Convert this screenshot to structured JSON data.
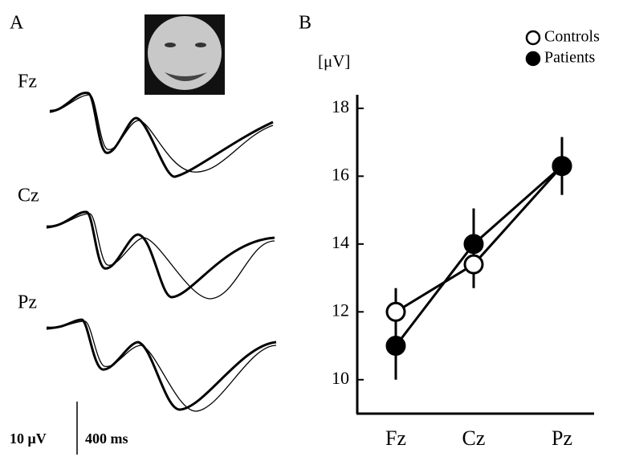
{
  "panel_a": {
    "label": "A",
    "traces": [
      "Fz",
      "Cz",
      "Pz"
    ],
    "scale_voltage": "10 μV",
    "scale_time": "400 ms"
  },
  "chart_data": {
    "type": "line",
    "panel_label": "B",
    "y_label": "[μV]",
    "categories": [
      "Fz",
      "Cz",
      "Pz"
    ],
    "series": [
      {
        "name": "Controls",
        "color": "#ffffff",
        "values": [
          12.0,
          13.4,
          16.3
        ],
        "errors": [
          0.7,
          0.7,
          0.85
        ]
      },
      {
        "name": "Patients",
        "color": "#000000",
        "values": [
          11.0,
          14.0,
          16.3
        ],
        "errors": [
          1.0,
          1.05,
          0.85
        ]
      }
    ],
    "ylim": [
      9,
      18.4
    ],
    "yticks": [
      10,
      12,
      14,
      16,
      18
    ],
    "grid": false,
    "legend": "top-right"
  }
}
